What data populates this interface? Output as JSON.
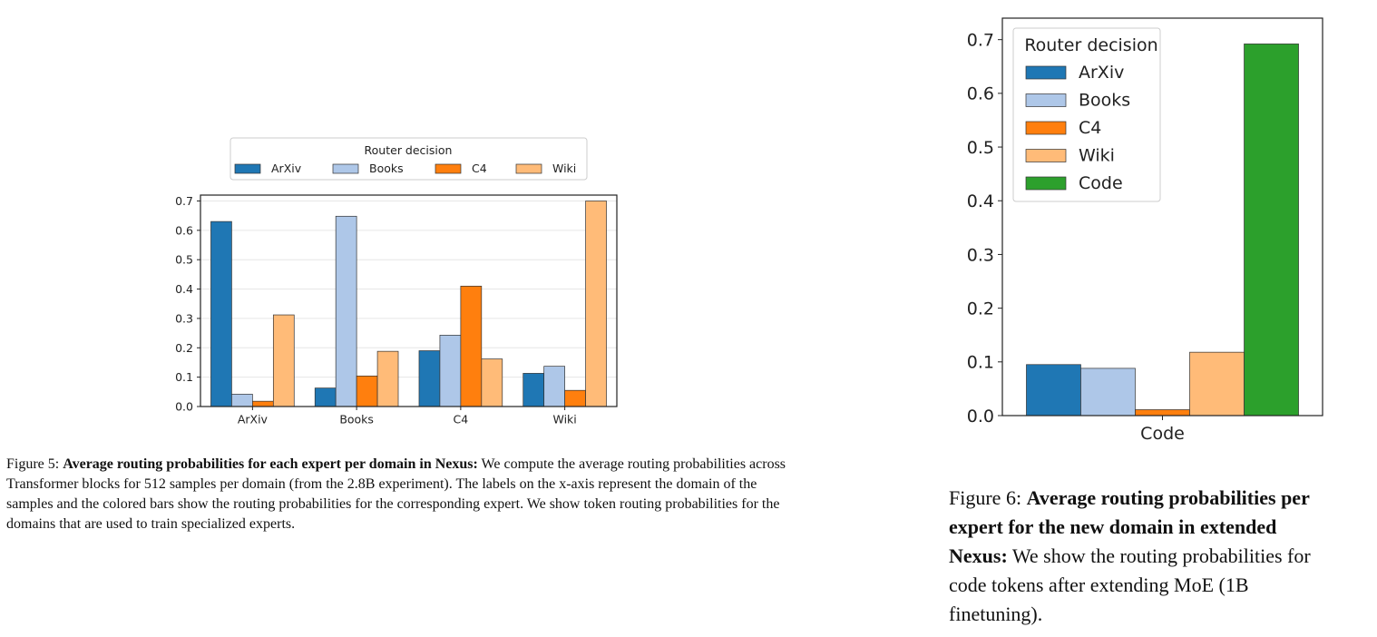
{
  "chart_data": [
    {
      "type": "bar",
      "categories": [
        "ArXiv",
        "Books",
        "C4",
        "Wiki"
      ],
      "series": [
        {
          "name": "ArXiv",
          "color": "#1f77b4",
          "values": [
            0.63,
            0.063,
            0.19,
            0.113
          ]
        },
        {
          "name": "Books",
          "color": "#aec7e8",
          "values": [
            0.042,
            0.648,
            0.243,
            0.137
          ]
        },
        {
          "name": "C4",
          "color": "#ff7f0e",
          "values": [
            0.018,
            0.104,
            0.41,
            0.055
          ]
        },
        {
          "name": "Wiki",
          "color": "#ffbb78",
          "values": [
            0.312,
            0.188,
            0.162,
            0.7
          ]
        }
      ],
      "legend": {
        "title": "Router decision",
        "placement": "top, outside",
        "columns": 4
      },
      "ylim": [
        0,
        0.72
      ],
      "yticks": [
        "0.0",
        "0.1",
        "0.2",
        "0.3",
        "0.4",
        "0.5",
        "0.6",
        "0.7"
      ],
      "ygrid": true,
      "title": "",
      "xlabel": "",
      "ylabel": ""
    },
    {
      "type": "bar",
      "categories": [
        "Code"
      ],
      "series": [
        {
          "name": "ArXiv",
          "color": "#1f77b4",
          "values": [
            0.095
          ]
        },
        {
          "name": "Books",
          "color": "#aec7e8",
          "values": [
            0.088
          ]
        },
        {
          "name": "C4",
          "color": "#ff7f0e",
          "values": [
            0.011
          ]
        },
        {
          "name": "Wiki",
          "color": "#ffbb78",
          "values": [
            0.118
          ]
        },
        {
          "name": "Code",
          "color": "#2ca02c",
          "values": [
            0.692
          ]
        }
      ],
      "legend": {
        "title": "Router decision",
        "placement": "top-left",
        "columns": 1
      },
      "ylim": [
        0,
        0.74
      ],
      "yticks": [
        "0.0",
        "0.1",
        "0.2",
        "0.3",
        "0.4",
        "0.5",
        "0.6",
        "0.7"
      ],
      "ygrid": false,
      "title": "",
      "xlabel": "",
      "ylabel": ""
    }
  ],
  "captions": {
    "fig5": {
      "label": "Figure 5:",
      "bold": "Average routing probabilities for each expert per domain in Nexus:",
      "body": "We compute the average routing probabilities across Transformer blocks for 512 samples per domain (from the 2.8B experiment). The labels on the x-axis represent the domain of the samples and the colored bars show the routing probabilities for the corresponding expert. We show token routing probabilities for the domains that are used to train specialized experts."
    },
    "fig6": {
      "label": "Figure 6:",
      "bold": "Average routing probabilities per expert for the new domain in extended Nexus:",
      "body": "We show the routing probabilities for code tokens after extending MoE (1B finetuning)."
    }
  }
}
